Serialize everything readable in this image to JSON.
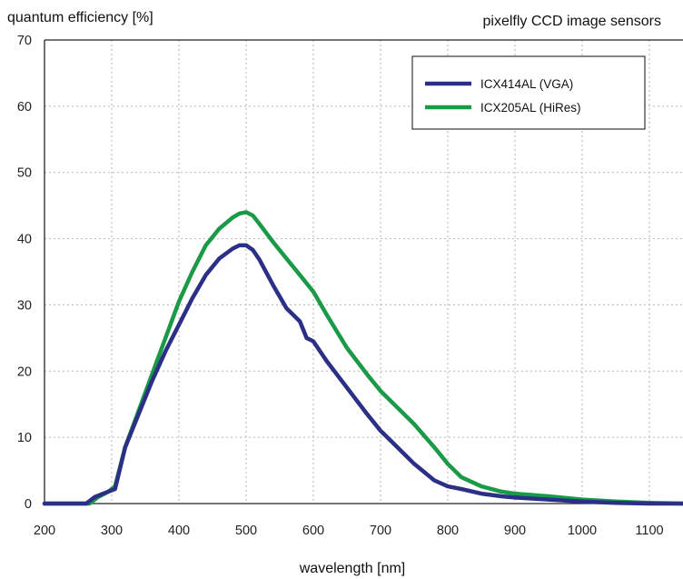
{
  "chart_data": {
    "type": "line",
    "title": "pixelfly CCD image sensors",
    "ylabel": "quantum efficiency [%]",
    "xlabel": "wavelength [nm]",
    "xlim": [
      200,
      1150
    ],
    "ylim": [
      0,
      70
    ],
    "xticks": [
      "200",
      "300",
      "400",
      "500",
      "600",
      "700",
      "800",
      "900",
      "1000",
      "1100"
    ],
    "yticks": [
      "0",
      "10",
      "20",
      "30",
      "40",
      "50",
      "60",
      "70"
    ],
    "grid": true,
    "legend_position": "top-right",
    "series": [
      {
        "name": "ICX414AL (VGA)",
        "color": "#2b2f86",
        "x": [
          200,
          250,
          262,
          275,
          290,
          305,
          320,
          340,
          360,
          380,
          400,
          420,
          440,
          460,
          480,
          490,
          500,
          510,
          520,
          540,
          560,
          580,
          590,
          600,
          620,
          650,
          680,
          700,
          720,
          750,
          780,
          800,
          820,
          850,
          880,
          900,
          950,
          1000,
          1050,
          1100,
          1150
        ],
        "y": [
          0,
          0,
          0,
          1,
          1.6,
          2.2,
          8.5,
          13.5,
          18.5,
          23,
          27,
          31,
          34.5,
          37,
          38.5,
          39,
          39,
          38.3,
          36.8,
          33,
          29.5,
          27.5,
          25,
          24.5,
          21.5,
          17.5,
          13.5,
          11,
          9,
          6,
          3.5,
          2.6,
          2.2,
          1.5,
          1.1,
          0.9,
          0.6,
          0.3,
          0.1,
          0,
          0
        ]
      },
      {
        "name": "ICX205AL (HiRes)",
        "color": "#1a9a47",
        "x": [
          200,
          255,
          267,
          280,
          295,
          305,
          320,
          340,
          360,
          380,
          400,
          420,
          440,
          460,
          480,
          490,
          500,
          510,
          520,
          540,
          560,
          580,
          600,
          620,
          650,
          680,
          700,
          720,
          750,
          780,
          800,
          820,
          850,
          880,
          900,
          950,
          1000,
          1050,
          1100,
          1150
        ],
        "y": [
          0,
          0,
          0,
          1,
          1.8,
          2.6,
          8.5,
          14,
          19.5,
          25,
          30.5,
          35,
          39,
          41.5,
          43.2,
          43.8,
          44,
          43.5,
          42.2,
          39.5,
          37,
          34.5,
          32,
          28.5,
          23.5,
          19.5,
          17,
          15,
          12,
          8.5,
          6,
          4,
          2.6,
          1.8,
          1.5,
          1.1,
          0.6,
          0.3,
          0.1,
          0
        ]
      }
    ]
  }
}
